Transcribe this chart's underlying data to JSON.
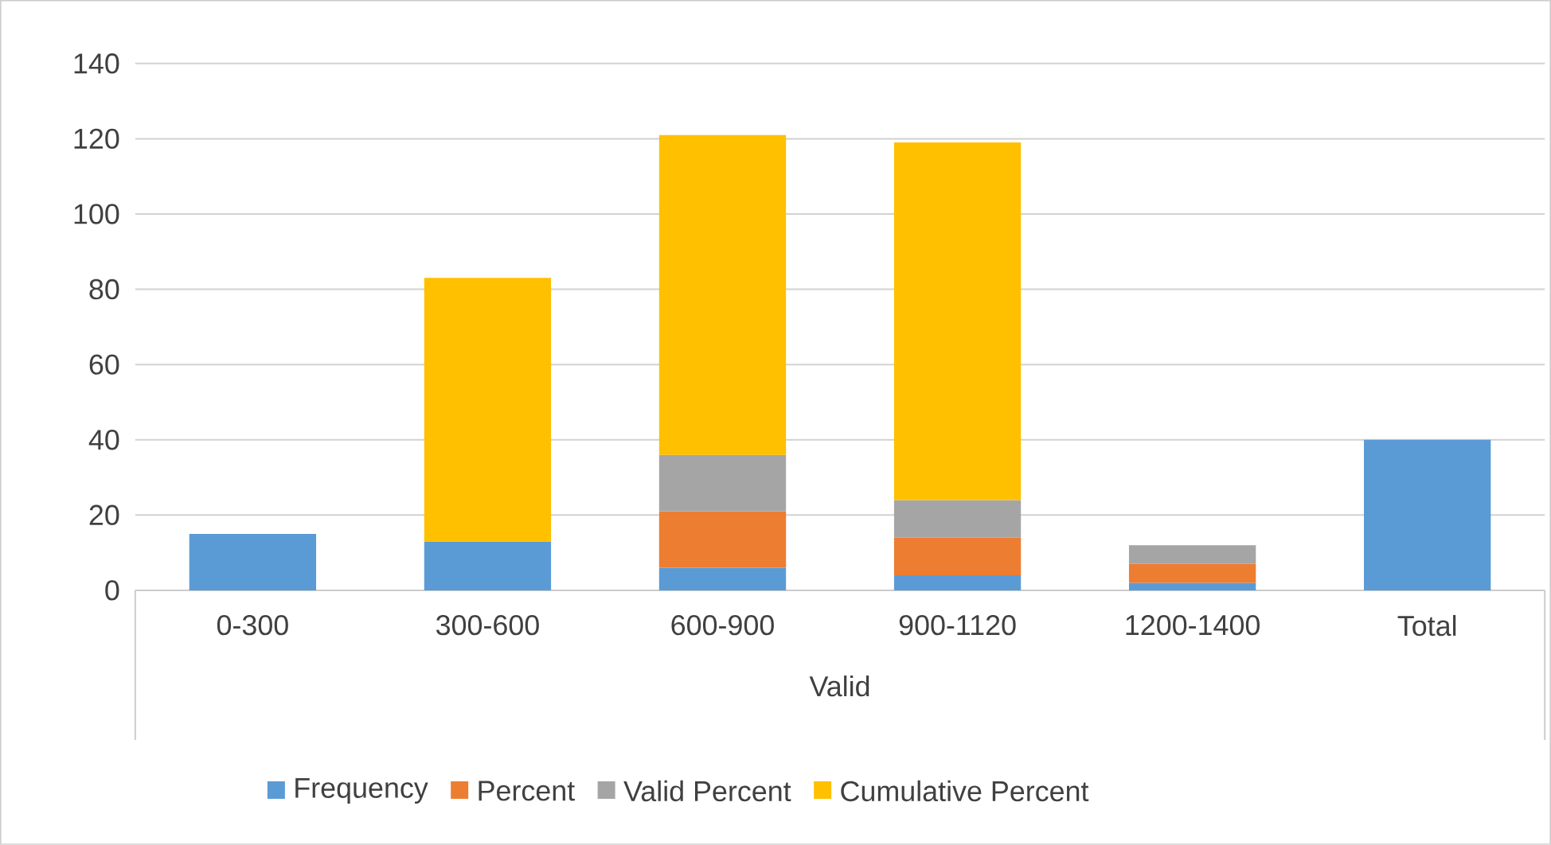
{
  "chart_data": {
    "type": "bar",
    "stacked": true,
    "xlabel": "Valid",
    "categories": [
      "0-300",
      "300-600",
      "600-900",
      "900-1120",
      "1200-1400",
      "Total"
    ],
    "series": [
      {
        "name": "Frequency",
        "color": "#5b9bd5",
        "values": [
          15,
          13,
          6,
          4,
          2,
          40
        ]
      },
      {
        "name": "Percent",
        "color": "#ed7d31",
        "values": [
          null,
          null,
          15,
          10,
          5,
          null
        ]
      },
      {
        "name": "Valid Percent",
        "color": "#a5a5a5",
        "values": [
          null,
          null,
          15,
          10,
          5,
          null
        ]
      },
      {
        "name": "Cumulative Percent",
        "color": "#ffc000",
        "values": [
          null,
          70,
          85,
          95,
          null,
          null
        ]
      }
    ],
    "ylim": [
      0,
      140
    ],
    "yticks": [
      0,
      20,
      40,
      60,
      80,
      100,
      120,
      140
    ],
    "grid": "y",
    "legend": "bottom"
  }
}
